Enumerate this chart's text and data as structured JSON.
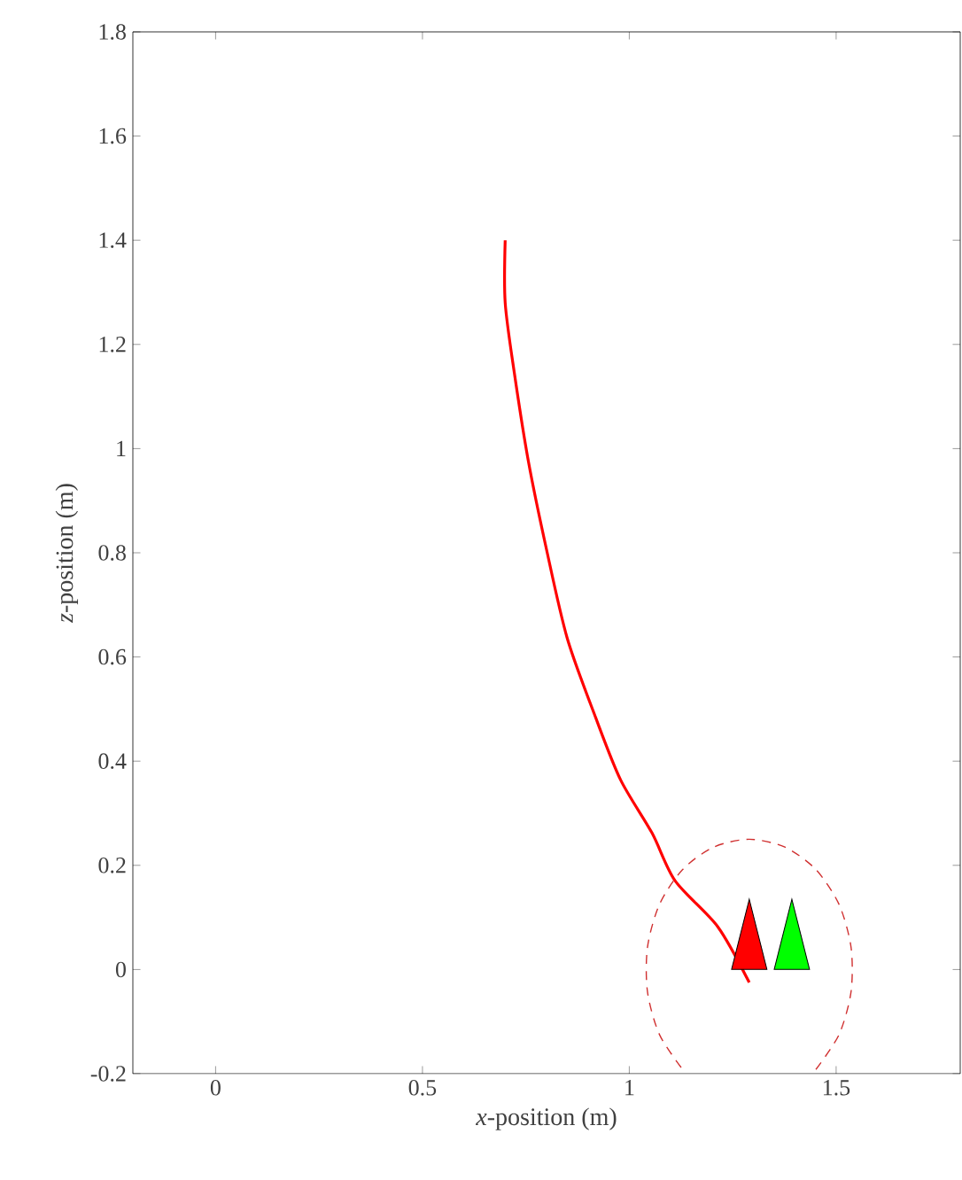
{
  "chart_data": {
    "type": "line",
    "xlabel": "*x*-position (m)",
    "ylabel": "*z*-position (m)",
    "xlim": [
      -0.2,
      1.8
    ],
    "ylim": [
      -0.2,
      1.8
    ],
    "xticks": [
      0,
      0.5,
      1,
      1.5
    ],
    "yticks": [
      -0.2,
      0,
      0.2,
      0.4,
      0.6,
      0.8,
      1,
      1.2,
      1.4,
      1.6,
      1.8
    ],
    "grid": false,
    "series": [
      {
        "color": "#ff0000",
        "line_style": "solid",
        "x": [
          0.7,
          0.7,
          0.722,
          0.756,
          0.8,
          0.85,
          0.919,
          0.979,
          1.055,
          1.111,
          1.214,
          1.29
        ],
        "values": [
          1.4,
          1.28,
          1.146,
          0.976,
          0.806,
          0.636,
          0.483,
          0.364,
          0.262,
          0.17,
          0.082,
          -0.025
        ]
      },
      {
        "color": "#d03030",
        "line_style": "dashed",
        "x": [
          1.451,
          1.507,
          1.536,
          1.536,
          1.507,
          1.451,
          1.376,
          1.29,
          1.204,
          1.129,
          1.073,
          1.044,
          1.044,
          1.073,
          1.129
        ],
        "values": [
          -0.192,
          -0.125,
          -0.043,
          0.043,
          0.125,
          0.192,
          0.235,
          0.25,
          0.235,
          0.192,
          0.125,
          0.043,
          -0.043,
          -0.125,
          -0.192
        ]
      },
      {
        "type": "scatter",
        "marker": "triangle",
        "color": "#ff0000",
        "x": [
          1.29
        ],
        "values": [
          0.045
        ]
      },
      {
        "type": "scatter",
        "marker": "triangle",
        "color": "#00ff00",
        "x": [
          1.393
        ],
        "values": [
          0.045
        ]
      }
    ]
  }
}
